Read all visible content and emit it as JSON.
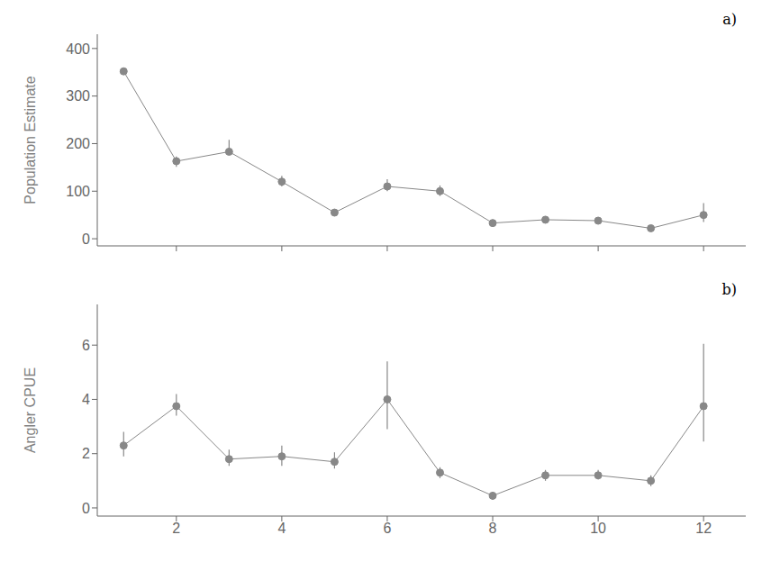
{
  "chart_data": [
    {
      "type": "line",
      "annotation": "a)",
      "ylabel": "Population Estimate",
      "x": [
        1,
        2,
        3,
        4,
        5,
        6,
        7,
        8,
        9,
        10,
        11,
        12
      ],
      "values": [
        352,
        163,
        183,
        120,
        55,
        110,
        100,
        33,
        40,
        38,
        22,
        50
      ],
      "error_low": [
        0,
        12,
        5,
        10,
        5,
        10,
        10,
        4,
        4,
        4,
        4,
        15
      ],
      "error_high": [
        0,
        10,
        25,
        12,
        5,
        15,
        12,
        5,
        5,
        5,
        5,
        25
      ],
      "color": "#888888",
      "marker": "circle",
      "xlim": [
        0.5,
        12.8
      ],
      "xticks": [
        2,
        4,
        6,
        8,
        10,
        12
      ],
      "ylim": [
        -15,
        430
      ],
      "yticks": [
        0,
        100,
        200,
        300,
        400
      ],
      "grid": false,
      "tick_labels": "y"
    },
    {
      "type": "line",
      "annotation": "b)",
      "ylabel": "Angler CPUE",
      "x": [
        1,
        2,
        3,
        4,
        5,
        6,
        7,
        8,
        9,
        10,
        11,
        12
      ],
      "values": [
        2.3,
        3.75,
        1.8,
        1.9,
        1.7,
        4.0,
        1.3,
        0.45,
        1.2,
        1.2,
        1.0,
        3.75
      ],
      "error_low": [
        0.4,
        0.35,
        0.25,
        0.35,
        0.25,
        1.1,
        0.2,
        0.15,
        0.2,
        0.15,
        0.2,
        1.3
      ],
      "error_high": [
        0.5,
        0.45,
        0.35,
        0.4,
        0.35,
        1.4,
        0.2,
        0.15,
        0.2,
        0.2,
        0.2,
        2.3
      ],
      "color": "#888888",
      "marker": "circle",
      "xlim": [
        0.5,
        12.8
      ],
      "xticks": [
        2,
        4,
        6,
        8,
        10,
        12
      ],
      "ylim": [
        -0.3,
        7.5
      ],
      "yticks": [
        0,
        2,
        4,
        6
      ],
      "grid": false
    }
  ]
}
